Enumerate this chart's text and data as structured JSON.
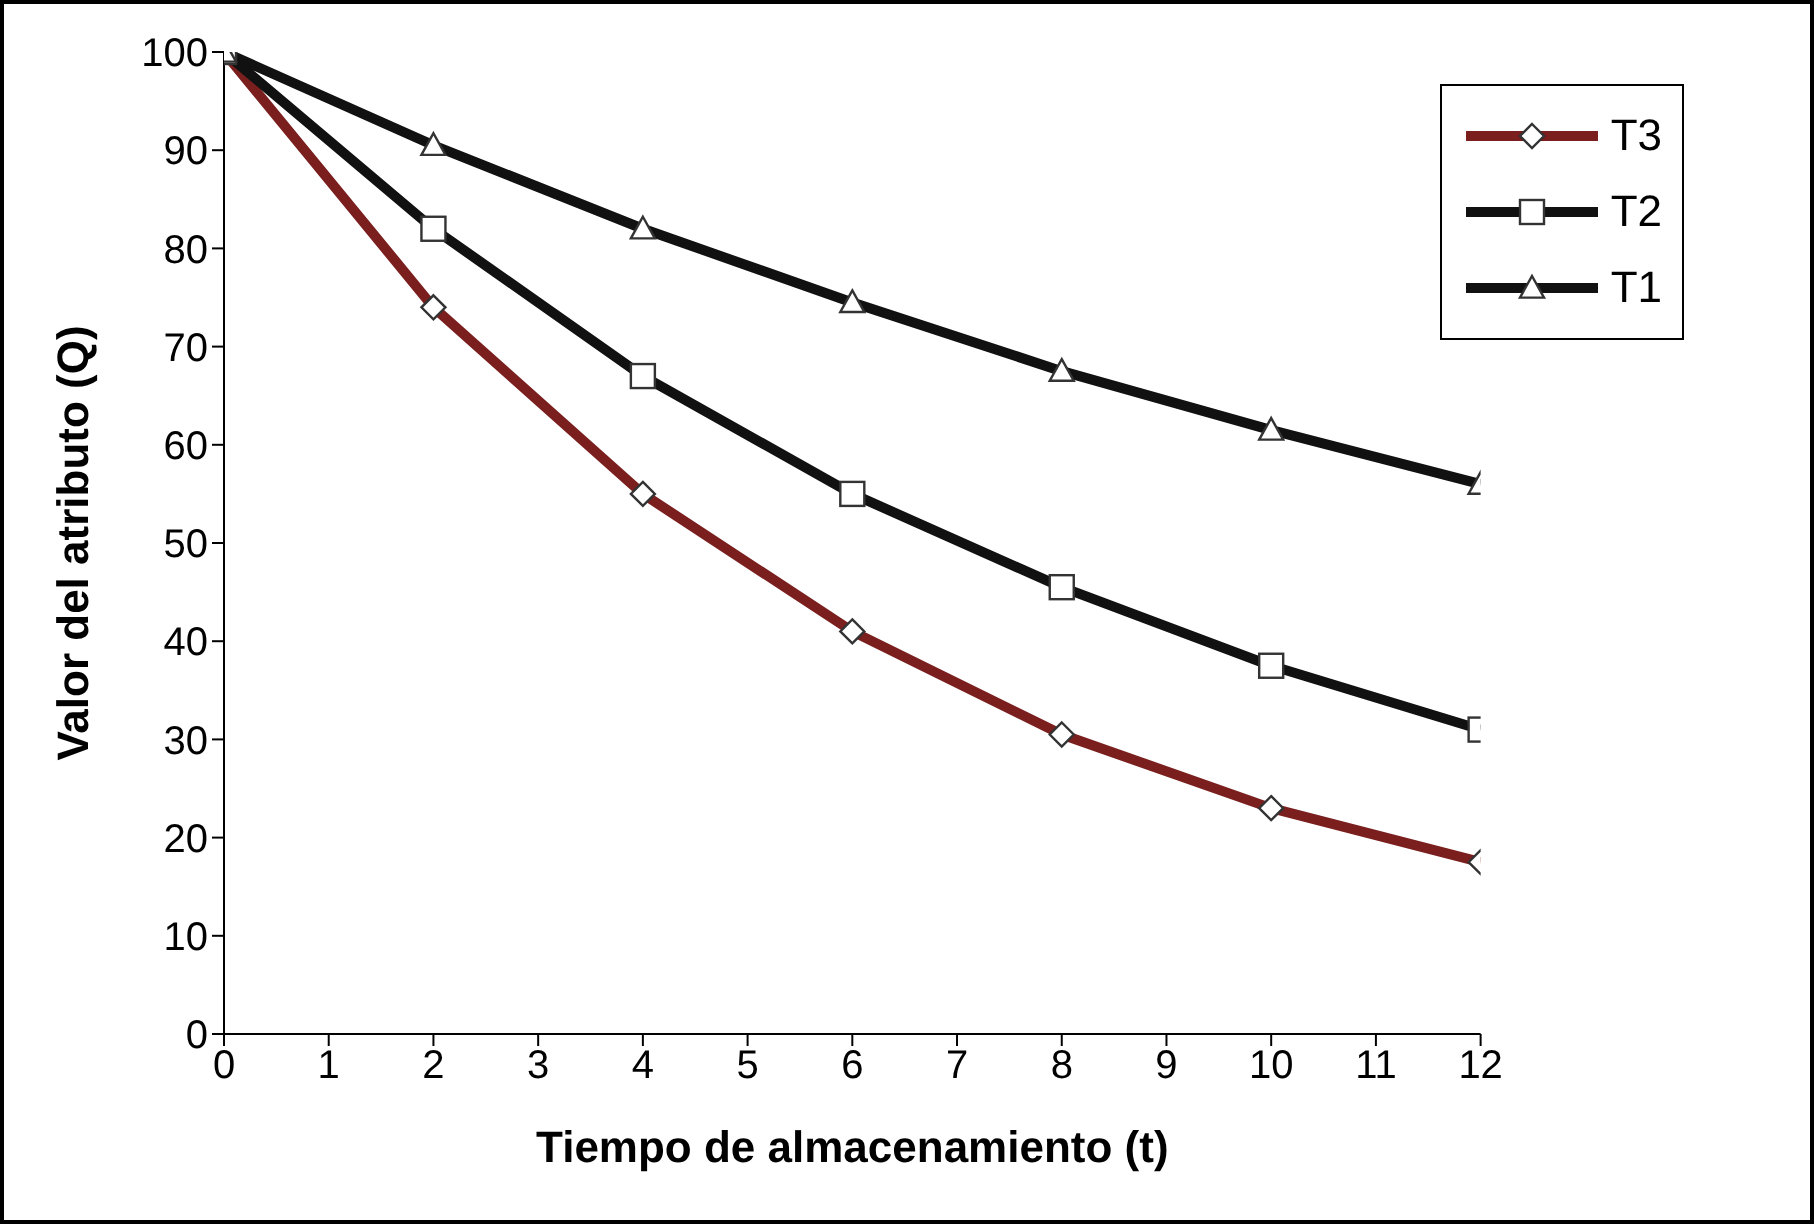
{
  "chart_data": {
    "type": "line",
    "xlabel": "Tiempo de almacenamiento (t)",
    "ylabel": "Valor del atributo (Q)",
    "x": [
      0,
      2,
      4,
      6,
      8,
      10,
      12
    ],
    "series": [
      {
        "name": "T3",
        "color": "#7a1e1e",
        "marker": "diamond",
        "values": [
          100,
          74,
          55,
          41,
          30.5,
          23,
          17.5
        ]
      },
      {
        "name": "T2",
        "color": "#111111",
        "marker": "square",
        "values": [
          100,
          82,
          67,
          55,
          45.5,
          37.5,
          31
        ]
      },
      {
        "name": "T1",
        "color": "#111111",
        "marker": "triangle",
        "values": [
          100,
          90.5,
          82,
          74.5,
          67.5,
          61.5,
          56
        ]
      }
    ],
    "xlim": [
      0,
      12
    ],
    "xticks": [
      0,
      1,
      2,
      3,
      4,
      5,
      6,
      7,
      8,
      9,
      10,
      11,
      12
    ],
    "ylim": [
      0,
      100
    ],
    "yticks": [
      0,
      10,
      20,
      30,
      40,
      50,
      60,
      70,
      80,
      90,
      100
    ],
    "grid": false,
    "legend": "top right",
    "line_style": "solid"
  }
}
